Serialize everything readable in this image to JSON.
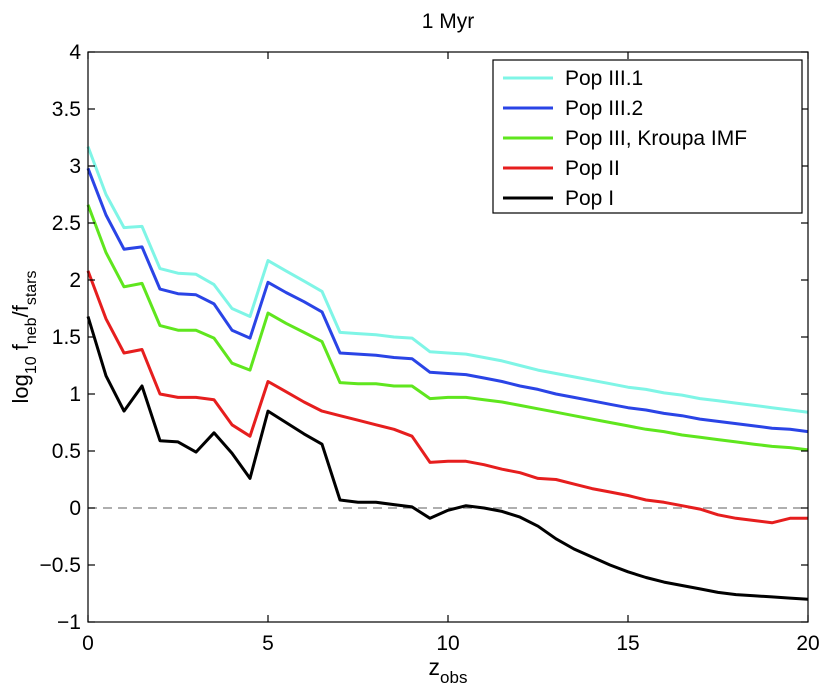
{
  "chart_data": {
    "type": "line",
    "title": "1 Myr",
    "xlabel": {
      "base": "z",
      "sub": "obs"
    },
    "ylabel": {
      "parts": [
        {
          "text": "log",
          "sub": false
        },
        {
          "text": "10",
          "sub": true
        },
        {
          "text": " f",
          "sub": false
        },
        {
          "text": "neb",
          "sub": true
        },
        {
          "text": "/f",
          "sub": false
        },
        {
          "text": "stars",
          "sub": true
        }
      ]
    },
    "xlim": [
      0,
      20
    ],
    "ylim": [
      -1,
      4
    ],
    "xticks": [
      0,
      5,
      10,
      15,
      20
    ],
    "xtick_labels": [
      "0",
      "5",
      "10",
      "15",
      "20"
    ],
    "yticks": [
      -1,
      -0.5,
      0,
      0.5,
      1,
      1.5,
      2,
      2.5,
      3,
      3.5,
      4
    ],
    "ytick_labels": [
      "−1",
      "−0.5",
      "0",
      "0.5",
      "1",
      "1.5",
      "2",
      "2.5",
      "3",
      "3.5",
      "4"
    ],
    "reference_line": {
      "y": 0,
      "style": "dashed",
      "color": "#7f7f7f"
    },
    "legend_position": "top-right",
    "series": [
      {
        "name": "Pop III.1",
        "color": "#7ff5e6",
        "x": [
          0,
          0.5,
          1,
          1.5,
          2,
          2.5,
          3,
          3.5,
          4,
          4.5,
          5,
          5.5,
          6,
          6.5,
          7,
          7.5,
          8,
          8.5,
          9,
          9.5,
          10,
          10.5,
          11,
          11.5,
          12,
          12.5,
          13,
          13.5,
          14,
          14.5,
          15,
          15.5,
          16,
          16.5,
          17,
          17.5,
          18,
          18.5,
          19,
          19.5,
          20
        ],
        "y": [
          3.17,
          2.75,
          2.46,
          2.47,
          2.1,
          2.06,
          2.05,
          1.96,
          1.75,
          1.68,
          2.17,
          2.08,
          1.99,
          1.9,
          1.54,
          1.53,
          1.52,
          1.5,
          1.49,
          1.37,
          1.36,
          1.35,
          1.32,
          1.29,
          1.25,
          1.21,
          1.18,
          1.15,
          1.12,
          1.09,
          1.06,
          1.04,
          1.01,
          0.99,
          0.96,
          0.94,
          0.92,
          0.9,
          0.88,
          0.86,
          0.84
        ]
      },
      {
        "name": "Pop III.2",
        "color": "#2a44e6",
        "x": [
          0,
          0.5,
          1,
          1.5,
          2,
          2.5,
          3,
          3.5,
          4,
          4.5,
          5,
          5.5,
          6,
          6.5,
          7,
          7.5,
          8,
          8.5,
          9,
          9.5,
          10,
          10.5,
          11,
          11.5,
          12,
          12.5,
          13,
          13.5,
          14,
          14.5,
          15,
          15.5,
          16,
          16.5,
          17,
          17.5,
          18,
          18.5,
          19,
          19.5,
          20
        ],
        "y": [
          2.98,
          2.57,
          2.27,
          2.29,
          1.92,
          1.88,
          1.87,
          1.79,
          1.56,
          1.49,
          1.98,
          1.89,
          1.81,
          1.72,
          1.36,
          1.35,
          1.34,
          1.32,
          1.31,
          1.19,
          1.18,
          1.17,
          1.14,
          1.11,
          1.07,
          1.04,
          1.0,
          0.97,
          0.94,
          0.91,
          0.88,
          0.86,
          0.83,
          0.81,
          0.78,
          0.76,
          0.74,
          0.72,
          0.7,
          0.69,
          0.67
        ]
      },
      {
        "name": "Pop III, Kroupa IMF",
        "color": "#5fe61e",
        "x": [
          0,
          0.5,
          1,
          1.5,
          2,
          2.5,
          3,
          3.5,
          4,
          4.5,
          5,
          5.5,
          6,
          6.5,
          7,
          7.5,
          8,
          8.5,
          9,
          9.5,
          10,
          10.5,
          11,
          11.5,
          12,
          12.5,
          13,
          13.5,
          14,
          14.5,
          15,
          15.5,
          16,
          16.5,
          17,
          17.5,
          18,
          18.5,
          19,
          19.5,
          20
        ],
        "y": [
          2.66,
          2.24,
          1.94,
          1.97,
          1.6,
          1.56,
          1.56,
          1.49,
          1.27,
          1.21,
          1.71,
          1.62,
          1.54,
          1.46,
          1.1,
          1.09,
          1.09,
          1.07,
          1.07,
          0.96,
          0.97,
          0.97,
          0.95,
          0.93,
          0.9,
          0.87,
          0.84,
          0.81,
          0.78,
          0.75,
          0.72,
          0.69,
          0.67,
          0.64,
          0.62,
          0.6,
          0.58,
          0.56,
          0.54,
          0.53,
          0.51
        ]
      },
      {
        "name": "Pop II",
        "color": "#e61e1e",
        "x": [
          0,
          0.5,
          1,
          1.5,
          2,
          2.5,
          3,
          3.5,
          4,
          4.5,
          5,
          5.5,
          6,
          6.5,
          7,
          7.5,
          8,
          8.5,
          9,
          9.5,
          10,
          10.5,
          11,
          11.5,
          12,
          12.5,
          13,
          13.5,
          14,
          14.5,
          15,
          15.5,
          16,
          16.5,
          17,
          17.5,
          18,
          18.5,
          19,
          19.5,
          20
        ],
        "y": [
          2.08,
          1.66,
          1.36,
          1.39,
          1.0,
          0.97,
          0.97,
          0.95,
          0.73,
          0.63,
          1.11,
          1.02,
          0.93,
          0.85,
          0.81,
          0.77,
          0.73,
          0.69,
          0.63,
          0.4,
          0.41,
          0.41,
          0.38,
          0.34,
          0.31,
          0.26,
          0.25,
          0.21,
          0.17,
          0.14,
          0.11,
          0.07,
          0.05,
          0.02,
          -0.01,
          -0.06,
          -0.09,
          -0.11,
          -0.13,
          -0.09,
          -0.09
        ]
      },
      {
        "name": "Pop I",
        "color": "#000000",
        "x": [
          0,
          0.5,
          1,
          1.5,
          2,
          2.5,
          3,
          3.5,
          4,
          4.5,
          5,
          5.5,
          6,
          6.5,
          7,
          7.5,
          8,
          8.5,
          9,
          9.5,
          10,
          10.5,
          11,
          11.5,
          12,
          12.5,
          13,
          13.5,
          14,
          14.5,
          15,
          15.5,
          16,
          16.5,
          17,
          17.5,
          18,
          18.5,
          19,
          19.5,
          20
        ],
        "y": [
          1.68,
          1.16,
          0.85,
          1.07,
          0.59,
          0.58,
          0.49,
          0.66,
          0.48,
          0.26,
          0.85,
          0.75,
          0.65,
          0.56,
          0.07,
          0.05,
          0.05,
          0.03,
          0.01,
          -0.09,
          -0.02,
          0.02,
          0.0,
          -0.03,
          -0.08,
          -0.16,
          -0.27,
          -0.36,
          -0.43,
          -0.5,
          -0.56,
          -0.61,
          -0.65,
          -0.68,
          -0.71,
          -0.74,
          -0.76,
          -0.77,
          -0.78,
          -0.79,
          -0.8
        ]
      }
    ]
  }
}
